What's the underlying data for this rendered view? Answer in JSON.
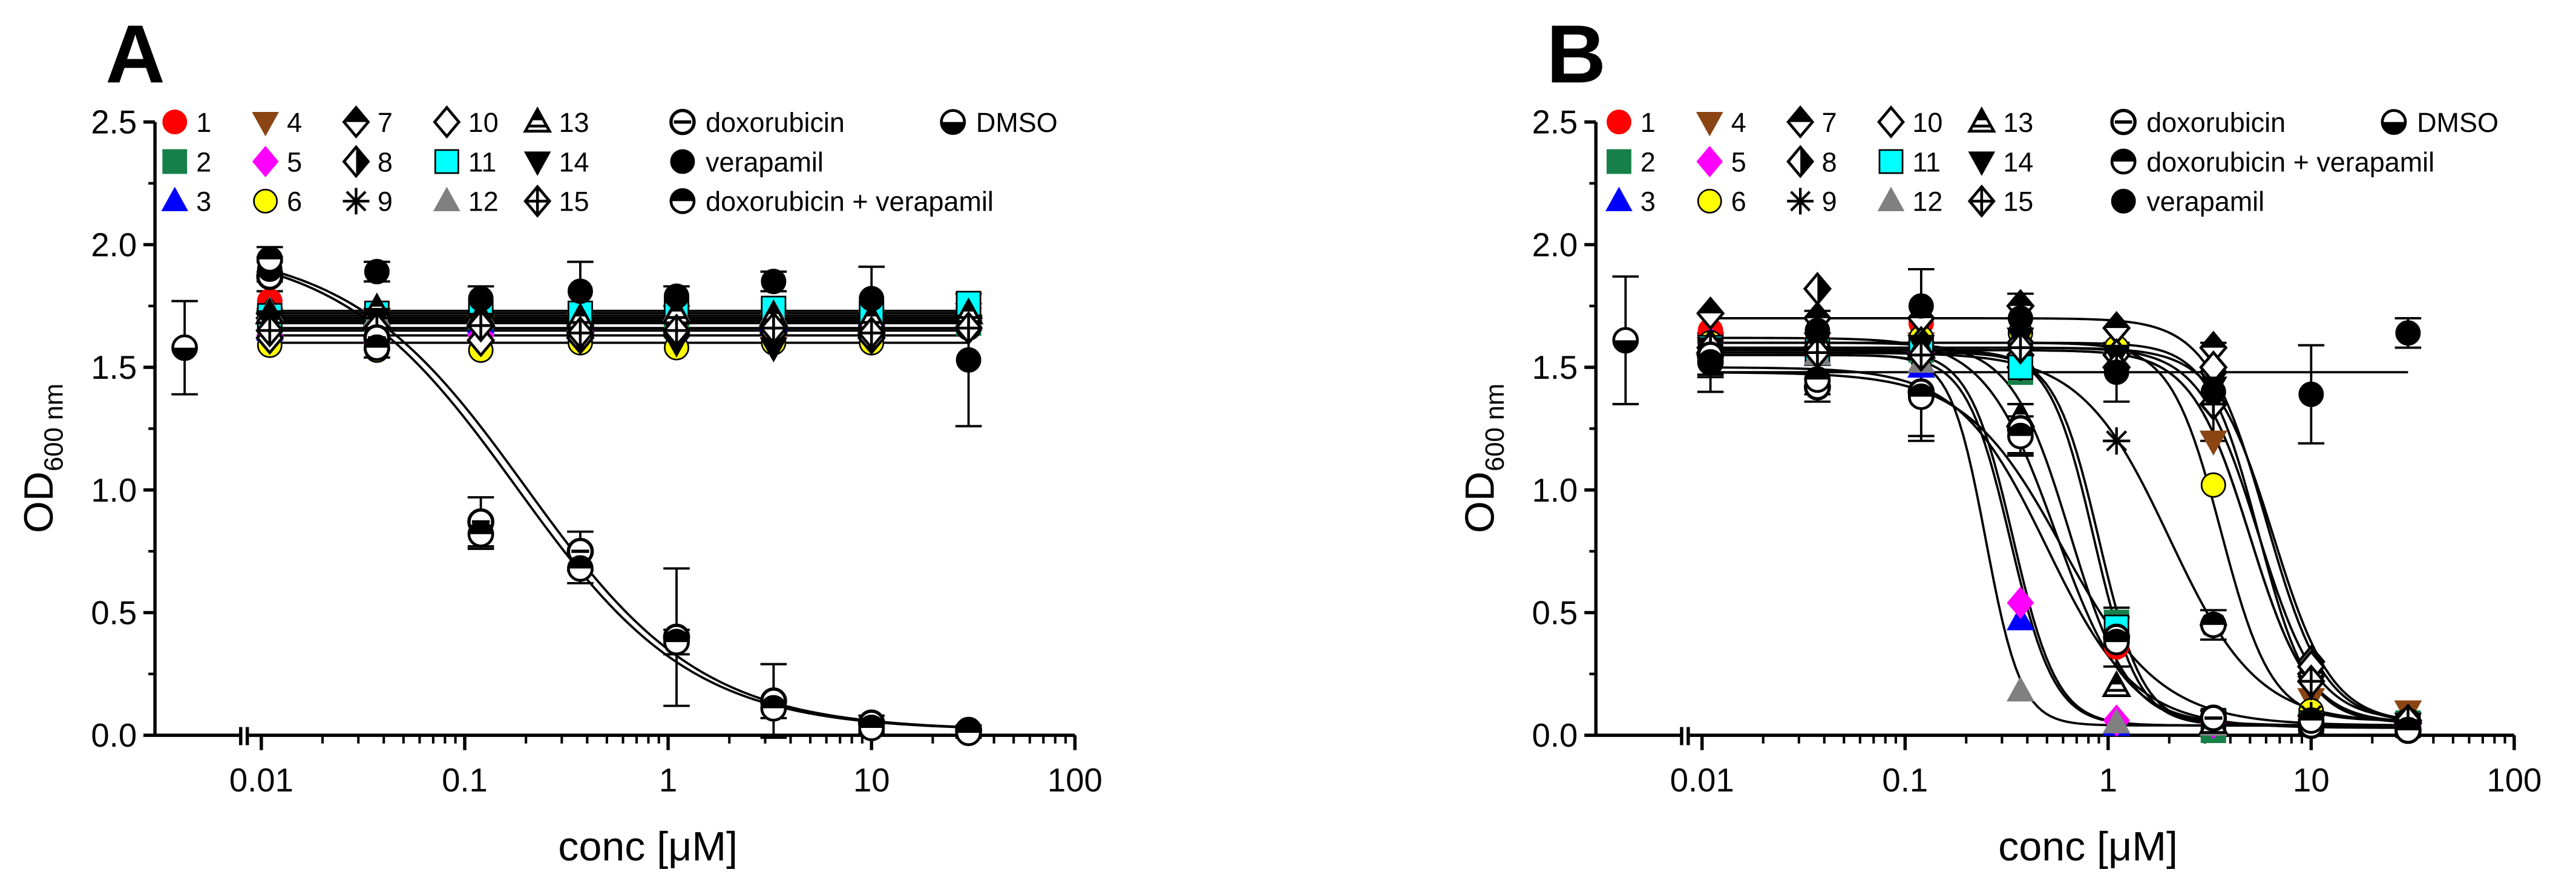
{
  "chart_data": [
    {
      "type": "scatter",
      "panel_label": "A",
      "xlabel": "conc [μM]",
      "ylabel": "OD",
      "ylabel_subscript": "600 nm",
      "xscale": "log",
      "xlim": [
        0.003,
        100
      ],
      "ylim": [
        0,
        2.5
      ],
      "xticks": [
        {
          "value": 0.01,
          "label": "0.01"
        },
        {
          "value": 0.1,
          "label": "0.1"
        },
        {
          "value": 1,
          "label": "1"
        },
        {
          "value": 10,
          "label": "10"
        },
        {
          "value": 100,
          "label": "100"
        }
      ],
      "yticks": [
        {
          "value": 0,
          "label": "0.0"
        },
        {
          "value": 0.5,
          "label": "0.5"
        },
        {
          "value": 1,
          "label": "1.0"
        },
        {
          "value": 1.5,
          "label": "1.5"
        },
        {
          "value": 2,
          "label": "2.0"
        },
        {
          "value": 2.5,
          "label": "2.5"
        }
      ],
      "x": [
        0.011,
        0.037,
        0.12,
        0.37,
        1.1,
        3.3,
        10,
        30
      ],
      "series": [
        {
          "name": "1",
          "marker": "circle",
          "color": "#ff0000",
          "values": [
            1.77,
            1.66,
            1.71,
            1.7,
            1.67,
            1.64,
            1.68,
            1.7
          ],
          "fit": {
            "type": "flat",
            "level": 1.7
          }
        },
        {
          "name": "2",
          "marker": "square",
          "color": "#17804a",
          "values": [
            1.66,
            1.68,
            1.7,
            1.69,
            1.69,
            1.7,
            1.7,
            1.68
          ],
          "fit": {
            "type": "flat",
            "level": 1.69
          }
        },
        {
          "name": "3",
          "marker": "triangle-up",
          "color": "#0000ff",
          "values": [
            1.65,
            1.67,
            1.68,
            1.66,
            1.67,
            1.69,
            1.71,
            1.69
          ],
          "fit": {
            "type": "flat",
            "level": 1.68
          }
        },
        {
          "name": "4",
          "marker": "triangle-down",
          "color": "#8b4513",
          "values": [
            1.7,
            1.69,
            1.67,
            1.68,
            1.66,
            1.68,
            1.69,
            1.72
          ],
          "fit": {
            "type": "flat",
            "level": 1.68
          }
        },
        {
          "name": "5",
          "marker": "diamond",
          "color": "#ff00ff",
          "values": [
            1.63,
            1.6,
            1.63,
            1.65,
            1.64,
            1.66,
            1.68,
            1.74
          ],
          "fit": {
            "type": "flat",
            "level": 1.66
          }
        },
        {
          "name": "6",
          "marker": "circle",
          "color": "#ffff00",
          "values": [
            1.59,
            1.57,
            1.57,
            1.6,
            1.58,
            1.6,
            1.6,
            1.66
          ],
          "fit": {
            "type": "flat",
            "level": 1.6
          }
        },
        {
          "name": "7",
          "marker": "diamond-half-top",
          "color": "#000000",
          "values": [
            1.72,
            1.7,
            1.68,
            1.67,
            1.69,
            1.7,
            1.68,
            1.7
          ],
          "fit": {
            "type": "flat",
            "level": 1.69
          }
        },
        {
          "name": "8",
          "marker": "diamond-half-right",
          "color": "#000000",
          "values": [
            1.7,
            1.72,
            1.69,
            1.68,
            1.7,
            1.69,
            1.71,
            1.7
          ],
          "fit": {
            "type": "flat",
            "level": 1.7
          }
        },
        {
          "name": "9",
          "marker": "asterisk",
          "color": "#000000",
          "values": [
            1.68,
            1.67,
            1.7,
            1.66,
            1.68,
            1.67,
            1.69,
            1.71
          ],
          "fit": {
            "type": "flat",
            "level": 1.68
          }
        },
        {
          "name": "10",
          "marker": "diamond-open",
          "color": "#000000",
          "values": [
            1.62,
            1.63,
            1.61,
            1.62,
            1.63,
            1.64,
            1.62,
            1.66
          ],
          "fit": {
            "type": "flat",
            "level": 1.63
          }
        },
        {
          "name": "11",
          "marker": "square",
          "color": "#00ffff",
          "values": [
            1.71,
            1.72,
            1.73,
            1.72,
            1.73,
            1.74,
            1.72,
            1.76
          ],
          "fit": {
            "type": "flat",
            "level": 1.73
          }
        },
        {
          "name": "12",
          "marker": "triangle-up",
          "color": "#808080",
          "values": [
            1.73,
            1.71,
            1.72,
            1.7,
            1.73,
            1.72,
            1.7,
            1.71
          ],
          "fit": {
            "type": "flat",
            "level": 1.71
          }
        },
        {
          "name": "13",
          "marker": "triangle-half",
          "color": "#000000",
          "values": [
            1.72,
            1.74,
            1.71,
            1.7,
            1.72,
            1.71,
            1.7,
            1.72
          ],
          "fit": {
            "type": "flat",
            "level": 1.71
          }
        },
        {
          "name": "14",
          "marker": "triangle-down",
          "color": "#000000",
          "values": [
            1.69,
            1.7,
            1.68,
            1.62,
            1.6,
            1.58,
            1.62,
            1.65
          ],
          "fit": {
            "type": "flat",
            "level": 1.65
          }
        },
        {
          "name": "15",
          "marker": "diamond-cross",
          "color": "#000000",
          "values": [
            1.65,
            1.66,
            1.67,
            1.64,
            1.65,
            1.66,
            1.64,
            1.66
          ],
          "fit": {
            "type": "flat",
            "level": 1.65
          }
        },
        {
          "name": "doxorubicin",
          "marker": "circle-hatch",
          "color": "#000000",
          "values": [
            1.87,
            1.62,
            0.87,
            0.75,
            0.4,
            0.14,
            0.05,
            0.02
          ],
          "errors": [
            0.06,
            0.05,
            0.1,
            0.08,
            0.28,
            0.15,
            0.03,
            0.02
          ],
          "fit": {
            "type": "logistic",
            "top": 2.0,
            "bottom": 0.02,
            "ic50": 0.2,
            "hill": 1.0
          }
        },
        {
          "name": "verapamil",
          "marker": "circle-filled",
          "color": "#000000",
          "values": [
            1.9,
            1.89,
            1.78,
            1.81,
            1.79,
            1.85,
            1.78,
            1.53
          ],
          "errors": [
            0.05,
            0.04,
            0.05,
            0.12,
            0.04,
            0.04,
            0.13,
            0.27
          ],
          "fit": {
            "type": "flat",
            "level": 1.72
          }
        },
        {
          "name": "doxorubicin + verapamil",
          "marker": "circle-half-top",
          "color": "#000000",
          "values": [
            1.94,
            1.58,
            0.82,
            0.68,
            0.38,
            0.11,
            0.03,
            0.01
          ],
          "errors": [
            0.05,
            0.04,
            0.06,
            0.06,
            0.05,
            0.04,
            0.02,
            0.02
          ],
          "fit": {
            "type": "logistic",
            "top": 2.0,
            "bottom": 0.02,
            "ic50": 0.18,
            "hill": 1.0
          }
        }
      ],
      "control": {
        "name": "DMSO",
        "marker": "circle-half-bottom",
        "color": "#000000",
        "value": 1.58,
        "error": 0.19
      },
      "legend": {
        "numbered": [
          "1",
          "2",
          "3",
          "4",
          "5",
          "6",
          "7",
          "8",
          "9",
          "10",
          "11",
          "12",
          "13",
          "14",
          "15"
        ],
        "named": [
          "doxorubicin",
          "verapamil",
          "doxorubicin + verapamil",
          "DMSO"
        ]
      }
    },
    {
      "type": "scatter",
      "panel_label": "B",
      "xlabel": "conc [μM]",
      "ylabel": "OD",
      "ylabel_subscript": "600 nm",
      "xscale": "log",
      "xlim": [
        0.003,
        100
      ],
      "ylim": [
        0,
        2.5
      ],
      "xticks": [
        {
          "value": 0.01,
          "label": "0.01"
        },
        {
          "value": 0.1,
          "label": "0.1"
        },
        {
          "value": 1,
          "label": "1"
        },
        {
          "value": 10,
          "label": "10"
        },
        {
          "value": 100,
          "label": "100"
        }
      ],
      "yticks": [
        {
          "value": 0,
          "label": "0.0"
        },
        {
          "value": 0.5,
          "label": "0.5"
        },
        {
          "value": 1,
          "label": "1.0"
        },
        {
          "value": 1.5,
          "label": "1.5"
        },
        {
          "value": 2,
          "label": "2.0"
        },
        {
          "value": 2.5,
          "label": "2.5"
        }
      ],
      "x": [
        0.011,
        0.037,
        0.12,
        0.37,
        1.1,
        3.3,
        10,
        30
      ],
      "series": [
        {
          "name": "1",
          "marker": "circle",
          "color": "#ff0000",
          "values": [
            1.65,
            1.61,
            1.68,
            1.24,
            0.36,
            0.07,
            0.05,
            0.02
          ],
          "fit": {
            "type": "logistic",
            "top": 1.62,
            "bottom": 0.04,
            "ic50": 0.55,
            "hill": 2.5
          }
        },
        {
          "name": "2",
          "marker": "square",
          "color": "#17804a",
          "values": [
            1.57,
            1.56,
            1.57,
            1.48,
            0.46,
            0.02,
            0.06,
            0.05
          ],
          "fit": {
            "type": "logistic",
            "top": 1.56,
            "bottom": 0.04,
            "ic50": 0.9,
            "hill": 4.0
          }
        },
        {
          "name": "3",
          "marker": "triangle-up",
          "color": "#0000ff",
          "values": [
            1.58,
            1.55,
            1.5,
            0.47,
            0.04,
            0.05,
            0.04,
            0.04
          ],
          "fit": {
            "type": "logistic",
            "top": 1.55,
            "bottom": 0.04,
            "ic50": 0.33,
            "hill": 4.0
          }
        },
        {
          "name": "4",
          "marker": "triangle-down",
          "color": "#8b4513",
          "values": [
            1.57,
            1.58,
            1.6,
            1.56,
            1.52,
            1.2,
            0.15,
            0.1
          ],
          "fit": {
            "type": "logistic",
            "top": 1.58,
            "bottom": 0.06,
            "ic50": 5.5,
            "hill": 3.0
          }
        },
        {
          "name": "5",
          "marker": "diamond",
          "color": "#ff00ff",
          "values": [
            1.6,
            1.56,
            1.56,
            0.54,
            0.06,
            0.05,
            0.05,
            0.04
          ],
          "fit": {
            "type": "logistic",
            "top": 1.57,
            "bottom": 0.04,
            "ic50": 0.34,
            "hill": 4.0
          }
        },
        {
          "name": "6",
          "marker": "circle",
          "color": "#ffff00",
          "values": [
            1.6,
            1.6,
            1.62,
            1.64,
            1.58,
            1.02,
            0.1,
            0.06
          ],
          "fit": {
            "type": "logistic",
            "top": 1.6,
            "bottom": 0.06,
            "ic50": 3.6,
            "hill": 3.5
          }
        },
        {
          "name": "7",
          "marker": "diamond-half-top",
          "color": "#000000",
          "values": [
            1.72,
            1.7,
            1.7,
            1.75,
            1.66,
            1.58,
            0.25,
            0.06
          ],
          "fit": {
            "type": "logistic",
            "top": 1.7,
            "bottom": 0.05,
            "ic50": 6.0,
            "hill": 3.0
          }
        },
        {
          "name": "8",
          "marker": "diamond-half-right",
          "color": "#000000",
          "values": [
            1.55,
            1.82,
            1.6,
            1.55,
            1.5,
            1.48,
            0.3,
            0.05
          ],
          "fit": {
            "type": "logistic",
            "top": 1.58,
            "bottom": 0.05,
            "ic50": 6.5,
            "hill": 3.0
          }
        },
        {
          "name": "9",
          "marker": "asterisk",
          "color": "#000000",
          "values": [
            1.56,
            1.57,
            1.55,
            1.5,
            1.2,
            0.45,
            0.08,
            0.05
          ],
          "fit": {
            "type": "logistic",
            "top": 1.56,
            "bottom": 0.05,
            "ic50": 2.0,
            "hill": 2.0
          }
        },
        {
          "name": "10",
          "marker": "diamond-open",
          "color": "#000000",
          "values": [
            1.55,
            1.56,
            1.58,
            1.6,
            1.55,
            1.5,
            0.28,
            0.05
          ],
          "fit": {
            "type": "logistic",
            "top": 1.57,
            "bottom": 0.05,
            "ic50": 5.0,
            "hill": 3.0
          }
        },
        {
          "name": "11",
          "marker": "square",
          "color": "#00ffff",
          "values": [
            1.58,
            1.57,
            1.58,
            1.5,
            0.44,
            0.06,
            0.05,
            0.04
          ],
          "fit": {
            "type": "logistic",
            "top": 1.57,
            "bottom": 0.04,
            "ic50": 0.85,
            "hill": 4.0
          }
        },
        {
          "name": "12",
          "marker": "triangle-up",
          "color": "#808080",
          "values": [
            1.57,
            1.55,
            1.52,
            0.18,
            0.05,
            0.04,
            0.04,
            0.04
          ],
          "fit": {
            "type": "logistic",
            "top": 1.55,
            "bottom": 0.04,
            "ic50": 0.25,
            "hill": 5.0
          }
        },
        {
          "name": "13",
          "marker": "triangle-half",
          "color": "#000000",
          "values": [
            1.6,
            1.62,
            1.58,
            1.3,
            0.2,
            0.05,
            0.04,
            0.04
          ],
          "fit": {
            "type": "logistic",
            "top": 1.6,
            "bottom": 0.04,
            "ic50": 0.65,
            "hill": 3.0
          }
        },
        {
          "name": "14",
          "marker": "triangle-down",
          "color": "#000000",
          "values": [
            1.58,
            1.6,
            1.59,
            1.62,
            1.55,
            1.42,
            0.2,
            0.05
          ],
          "fit": {
            "type": "logistic",
            "top": 1.6,
            "bottom": 0.05,
            "ic50": 5.5,
            "hill": 3.5
          }
        },
        {
          "name": "15",
          "marker": "diamond-cross",
          "color": "#000000",
          "values": [
            1.58,
            1.56,
            1.55,
            1.58,
            1.5,
            1.35,
            0.22,
            0.06
          ],
          "fit": {
            "type": "logistic",
            "top": 1.57,
            "bottom": 0.05,
            "ic50": 5.0,
            "hill": 3.0
          }
        },
        {
          "name": "doxorubicin",
          "marker": "circle-hatch",
          "color": "#000000",
          "values": [
            1.55,
            1.42,
            1.4,
            1.25,
            0.4,
            0.07,
            0.04,
            0.02
          ],
          "errors": [
            0.08,
            0.06,
            0.2,
            0.1,
            0.12,
            0.03,
            0.02,
            0.01
          ],
          "fit": {
            "type": "logistic",
            "top": 1.5,
            "bottom": 0.03,
            "ic50": 0.5,
            "hill": 2.0
          }
        },
        {
          "name": "doxorubicin + verapamil",
          "marker": "circle-half-top",
          "color": "#000000",
          "values": [
            1.52,
            1.45,
            1.38,
            1.22,
            0.38,
            0.45,
            0.06,
            0.02
          ],
          "errors": [
            0.06,
            0.06,
            0.16,
            0.08,
            0.1,
            0.06,
            0.02,
            0.01
          ],
          "fit": {
            "type": "logistic",
            "top": 1.48,
            "bottom": 0.04,
            "ic50": 0.6,
            "hill": 1.8
          }
        },
        {
          "name": "verapamil",
          "marker": "circle-filled",
          "color": "#000000",
          "values": [
            1.52,
            1.65,
            1.75,
            1.7,
            1.48,
            1.4,
            1.39,
            1.64
          ],
          "errors": [
            0.12,
            0.08,
            0.15,
            0.1,
            0.12,
            0.2,
            0.2,
            0.06
          ],
          "fit": {
            "type": "flat",
            "level": 1.48
          }
        }
      ],
      "control": {
        "name": "DMSO",
        "marker": "circle-half-bottom",
        "color": "#000000",
        "value": 1.61,
        "error": 0.26
      },
      "legend": {
        "numbered": [
          "1",
          "2",
          "3",
          "4",
          "5",
          "6",
          "7",
          "8",
          "9",
          "10",
          "11",
          "12",
          "13",
          "14",
          "15"
        ],
        "named": [
          "doxorubicin",
          "DMSO",
          "doxorubicin + verapamil",
          "verapamil"
        ]
      }
    }
  ]
}
